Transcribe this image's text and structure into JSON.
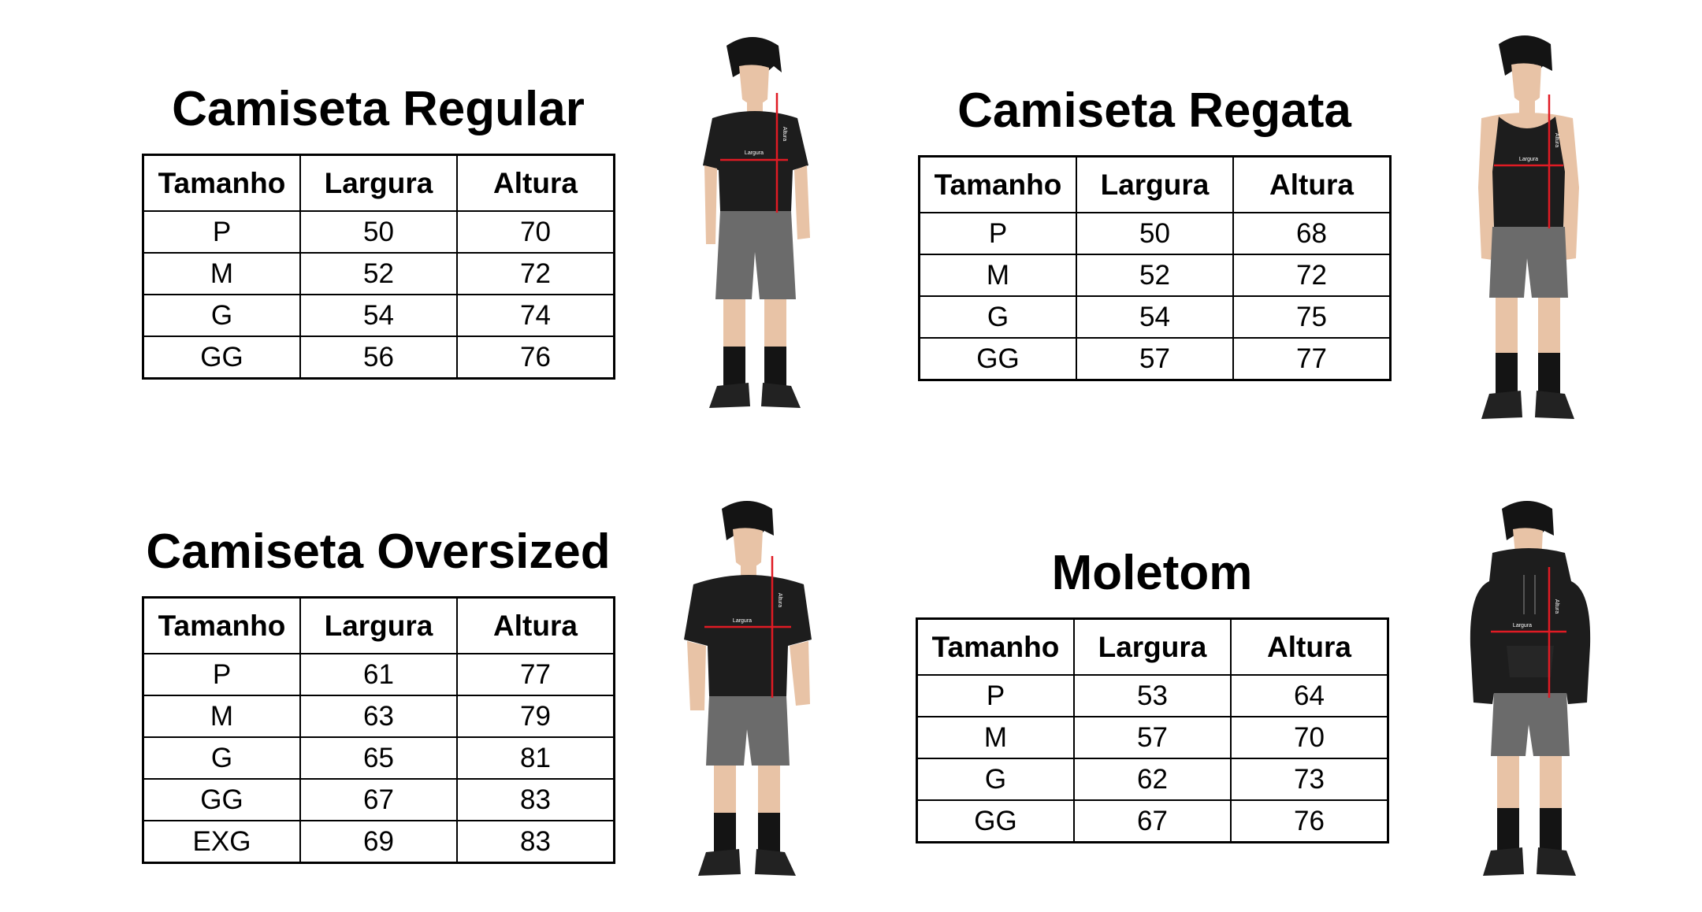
{
  "charts": [
    {
      "title": "Camiseta Regular",
      "columns": [
        "Tamanho",
        "Largura",
        "Altura"
      ],
      "rows": [
        [
          "P",
          "50",
          "70"
        ],
        [
          "M",
          "52",
          "72"
        ],
        [
          "G",
          "54",
          "74"
        ],
        [
          "GG",
          "56",
          "76"
        ]
      ]
    },
    {
      "title": "Camiseta Regata",
      "columns": [
        "Tamanho",
        "Largura",
        "Altura"
      ],
      "rows": [
        [
          "P",
          "50",
          "68"
        ],
        [
          "M",
          "52",
          "72"
        ],
        [
          "G",
          "54",
          "75"
        ],
        [
          "GG",
          "57",
          "77"
        ]
      ]
    },
    {
      "title": "Camiseta Oversized",
      "columns": [
        "Tamanho",
        "Largura",
        "Altura"
      ],
      "rows": [
        [
          "P",
          "61",
          "77"
        ],
        [
          "M",
          "63",
          "79"
        ],
        [
          "G",
          "65",
          "81"
        ],
        [
          "GG",
          "67",
          "83"
        ],
        [
          "EXG",
          "69",
          "83"
        ]
      ]
    },
    {
      "title": "Moletom",
      "columns": [
        "Tamanho",
        "Largura",
        "Altura"
      ],
      "rows": [
        [
          "P",
          "53",
          "64"
        ],
        [
          "M",
          "57",
          "70"
        ],
        [
          "G",
          "62",
          "73"
        ],
        [
          "GG",
          "67",
          "76"
        ]
      ]
    }
  ],
  "figure_labels": {
    "width": "Largura",
    "height": "Altura"
  },
  "colors": {
    "measure_line": "#e01b24",
    "garment": "#1d1d1d",
    "shorts": "#6b6b6b",
    "skin": "#e8c3a6",
    "hair": "#141414"
  }
}
